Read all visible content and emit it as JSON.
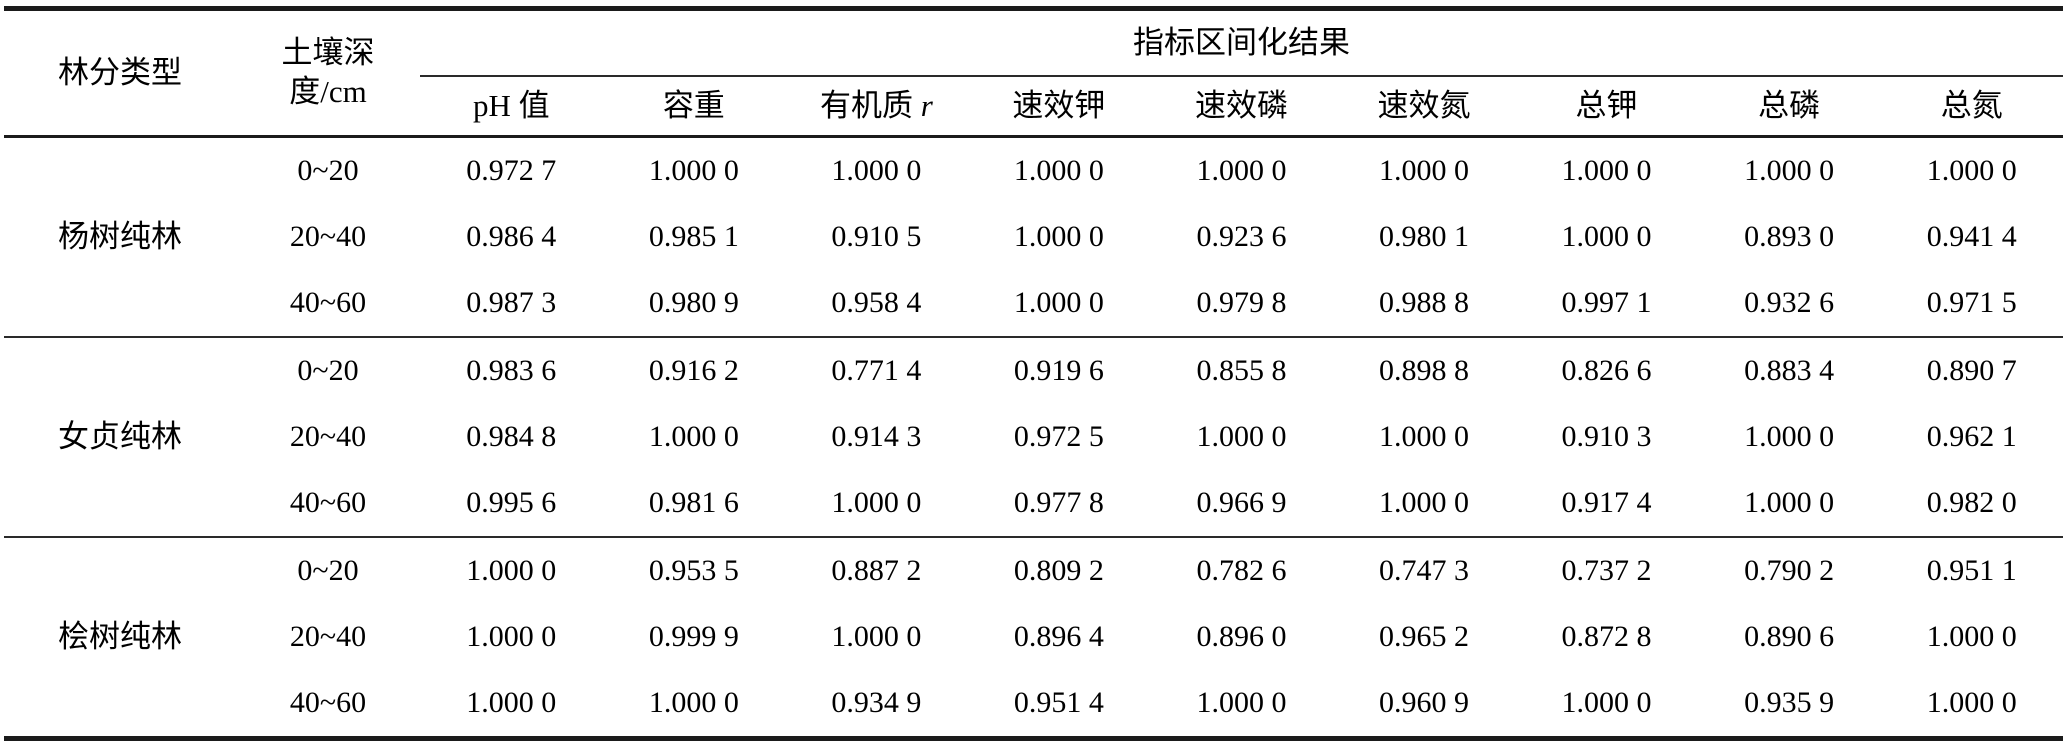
{
  "table": {
    "forest_type_header": "林分类型",
    "soil_depth_header_line1": "土壤深",
    "soil_depth_header_line2": "度/cm",
    "indicator_span_header": "指标区间化结果",
    "indicator_columns": [
      {
        "label": "pH 值"
      },
      {
        "label": "容重"
      },
      {
        "label": "有机质",
        "italic_suffix": "r"
      },
      {
        "label": "速效钾"
      },
      {
        "label": "速效磷"
      },
      {
        "label": "速效氮"
      },
      {
        "label": "总钾"
      },
      {
        "label": "总磷"
      },
      {
        "label": "总氮"
      }
    ],
    "groups": [
      {
        "forest_type": "杨树纯林",
        "rows": [
          {
            "depth": "0~20",
            "values": [
              "0.972 7",
              "1.000 0",
              "1.000 0",
              "1.000 0",
              "1.000 0",
              "1.000 0",
              "1.000 0",
              "1.000 0",
              "1.000 0"
            ]
          },
          {
            "depth": "20~40",
            "values": [
              "0.986 4",
              "0.985 1",
              "0.910 5",
              "1.000 0",
              "0.923 6",
              "0.980 1",
              "1.000 0",
              "0.893 0",
              "0.941 4"
            ]
          },
          {
            "depth": "40~60",
            "values": [
              "0.987 3",
              "0.980 9",
              "0.958 4",
              "1.000 0",
              "0.979 8",
              "0.988 8",
              "0.997 1",
              "0.932 6",
              "0.971 5"
            ]
          }
        ]
      },
      {
        "forest_type": "女贞纯林",
        "rows": [
          {
            "depth": "0~20",
            "values": [
              "0.983 6",
              "0.916 2",
              "0.771 4",
              "0.919 6",
              "0.855 8",
              "0.898 8",
              "0.826 6",
              "0.883 4",
              "0.890 7"
            ]
          },
          {
            "depth": "20~40",
            "values": [
              "0.984 8",
              "1.000 0",
              "0.914 3",
              "0.972 5",
              "1.000 0",
              "1.000 0",
              "0.910 3",
              "1.000 0",
              "0.962 1"
            ]
          },
          {
            "depth": "40~60",
            "values": [
              "0.995 6",
              "0.981 6",
              "1.000 0",
              "0.977 8",
              "0.966 9",
              "1.000 0",
              "0.917 4",
              "1.000 0",
              "0.982 0"
            ]
          }
        ]
      },
      {
        "forest_type": "桧树纯林",
        "rows": [
          {
            "depth": "0~20",
            "values": [
              "1.000 0",
              "0.953 5",
              "0.887 2",
              "0.809 2",
              "0.782 6",
              "0.747 3",
              "0.737 2",
              "0.790 2",
              "0.951 1"
            ]
          },
          {
            "depth": "20~40",
            "values": [
              "1.000 0",
              "0.999 9",
              "1.000 0",
              "0.896 4",
              "0.896 0",
              "0.965 2",
              "0.872 8",
              "0.890 6",
              "1.000 0"
            ]
          },
          {
            "depth": "40~60",
            "values": [
              "1.000 0",
              "1.000 0",
              "0.934 9",
              "0.951 4",
              "1.000 0",
              "0.960 9",
              "1.000 0",
              "0.935 9",
              "1.000 0"
            ]
          }
        ]
      }
    ]
  }
}
